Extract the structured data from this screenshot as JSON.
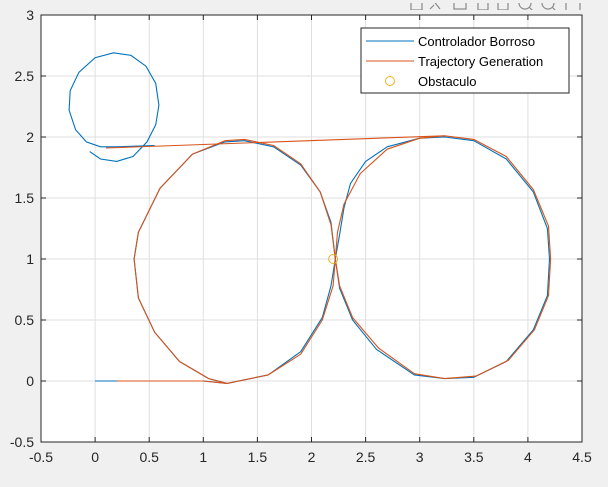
{
  "chart_data": {
    "type": "line",
    "title": "",
    "xlabel": "",
    "ylabel": "",
    "xlim": [
      -0.5,
      4.5
    ],
    "ylim": [
      -0.5,
      3
    ],
    "xticks": [
      -0.5,
      0,
      0.5,
      1,
      1.5,
      2,
      2.5,
      3,
      3.5,
      4,
      4.5
    ],
    "yticks": [
      -0.5,
      0,
      0.5,
      1,
      1.5,
      2,
      2.5,
      3
    ],
    "grid": true,
    "legend_position": "top-right",
    "series": [
      {
        "name": "Controlador Borroso",
        "color": "#0072BD",
        "kind": "line",
        "points": [
          [
            0,
            0
          ],
          [
            0.2,
            0
          ],
          [
            0.5,
            0
          ],
          [
            1,
            0
          ],
          [
            1.22,
            -0.02
          ],
          [
            1.6,
            0.05
          ],
          [
            1.9,
            0.24
          ],
          [
            2.1,
            0.52
          ],
          [
            2.18,
            0.78
          ],
          [
            2.22,
            1
          ],
          [
            2.26,
            1.2
          ],
          [
            2.3,
            1.42
          ],
          [
            2.36,
            1.62
          ],
          [
            2.5,
            1.8
          ],
          [
            2.7,
            1.92
          ],
          [
            3.0,
            1.99
          ],
          [
            3.23,
            2.0
          ],
          [
            3.5,
            1.97
          ],
          [
            3.8,
            1.82
          ],
          [
            4.05,
            1.55
          ],
          [
            4.18,
            1.25
          ],
          [
            4.2,
            1.0
          ],
          [
            4.18,
            0.7
          ],
          [
            4.05,
            0.42
          ],
          [
            3.8,
            0.16
          ],
          [
            3.5,
            0.03
          ],
          [
            3.23,
            0.02
          ],
          [
            2.95,
            0.05
          ],
          [
            2.6,
            0.26
          ],
          [
            2.38,
            0.5
          ],
          [
            2.26,
            0.76
          ],
          [
            2.22,
            1.0
          ],
          [
            2.18,
            1.3
          ],
          [
            2.08,
            1.55
          ],
          [
            1.9,
            1.77
          ],
          [
            1.65,
            1.92
          ],
          [
            1.38,
            1.97
          ],
          [
            1.2,
            1.96
          ],
          [
            0.9,
            1.86
          ],
          [
            0.6,
            1.58
          ],
          [
            0.4,
            1.22
          ],
          [
            0.36,
            1.0
          ],
          [
            0.4,
            0.68
          ],
          [
            0.55,
            0.4
          ],
          [
            0.78,
            0.16
          ],
          [
            1.05,
            0.02
          ],
          [
            1.22,
            -0.02
          ]
        ],
        "spiral_points": [
          [
            -0.05,
            1.88
          ],
          [
            0.05,
            1.82
          ],
          [
            0.2,
            1.8
          ],
          [
            0.35,
            1.84
          ],
          [
            0.48,
            1.96
          ],
          [
            0.56,
            2.1
          ],
          [
            0.59,
            2.26
          ],
          [
            0.56,
            2.44
          ],
          [
            0.47,
            2.58
          ],
          [
            0.33,
            2.67
          ],
          [
            0.17,
            2.69
          ],
          [
            0.0,
            2.65
          ],
          [
            -0.15,
            2.53
          ],
          [
            -0.23,
            2.38
          ],
          [
            -0.24,
            2.22
          ],
          [
            -0.18,
            2.06
          ],
          [
            -0.08,
            1.96
          ],
          [
            0.05,
            1.92
          ],
          [
            0.2,
            1.92
          ],
          [
            0.55,
            1.93
          ]
        ]
      },
      {
        "name": "Trajectory Generation",
        "color": "#D95319",
        "kind": "line",
        "points": [
          [
            0.2,
            0
          ],
          [
            1,
            0
          ],
          [
            1.22,
            -0.02
          ],
          [
            1.6,
            0.05
          ],
          [
            1.9,
            0.22
          ],
          [
            2.1,
            0.5
          ],
          [
            2.2,
            0.78
          ],
          [
            2.22,
            1
          ],
          [
            2.24,
            1.22
          ],
          [
            2.3,
            1.45
          ],
          [
            2.45,
            1.7
          ],
          [
            2.7,
            1.9
          ],
          [
            3.0,
            1.99
          ],
          [
            3.23,
            2.01
          ],
          [
            3.5,
            1.98
          ],
          [
            3.8,
            1.84
          ],
          [
            4.05,
            1.57
          ],
          [
            4.19,
            1.27
          ],
          [
            4.21,
            1.0
          ],
          [
            4.19,
            0.7
          ],
          [
            4.06,
            0.42
          ],
          [
            3.82,
            0.17
          ],
          [
            3.52,
            0.04
          ],
          [
            3.23,
            0.02
          ],
          [
            2.95,
            0.06
          ],
          [
            2.62,
            0.27
          ],
          [
            2.38,
            0.52
          ],
          [
            2.26,
            0.78
          ],
          [
            2.22,
            1.0
          ],
          [
            2.18,
            1.28
          ],
          [
            2.08,
            1.55
          ],
          [
            1.9,
            1.78
          ],
          [
            1.65,
            1.93
          ],
          [
            1.38,
            1.98
          ],
          [
            1.2,
            1.97
          ],
          [
            0.9,
            1.86
          ],
          [
            0.6,
            1.58
          ],
          [
            0.4,
            1.22
          ],
          [
            0.36,
            1.0
          ],
          [
            0.4,
            0.68
          ],
          [
            0.55,
            0.4
          ],
          [
            0.78,
            0.16
          ],
          [
            1.05,
            0.02
          ],
          [
            1.22,
            -0.02
          ]
        ],
        "tangent_line": [
          [
            0.1,
            1.91
          ],
          [
            3.23,
            2.01
          ]
        ]
      },
      {
        "name": "Obstaculo",
        "color": "#EDB120",
        "kind": "marker",
        "points": [
          [
            2.2,
            1.0
          ]
        ]
      }
    ]
  }
}
